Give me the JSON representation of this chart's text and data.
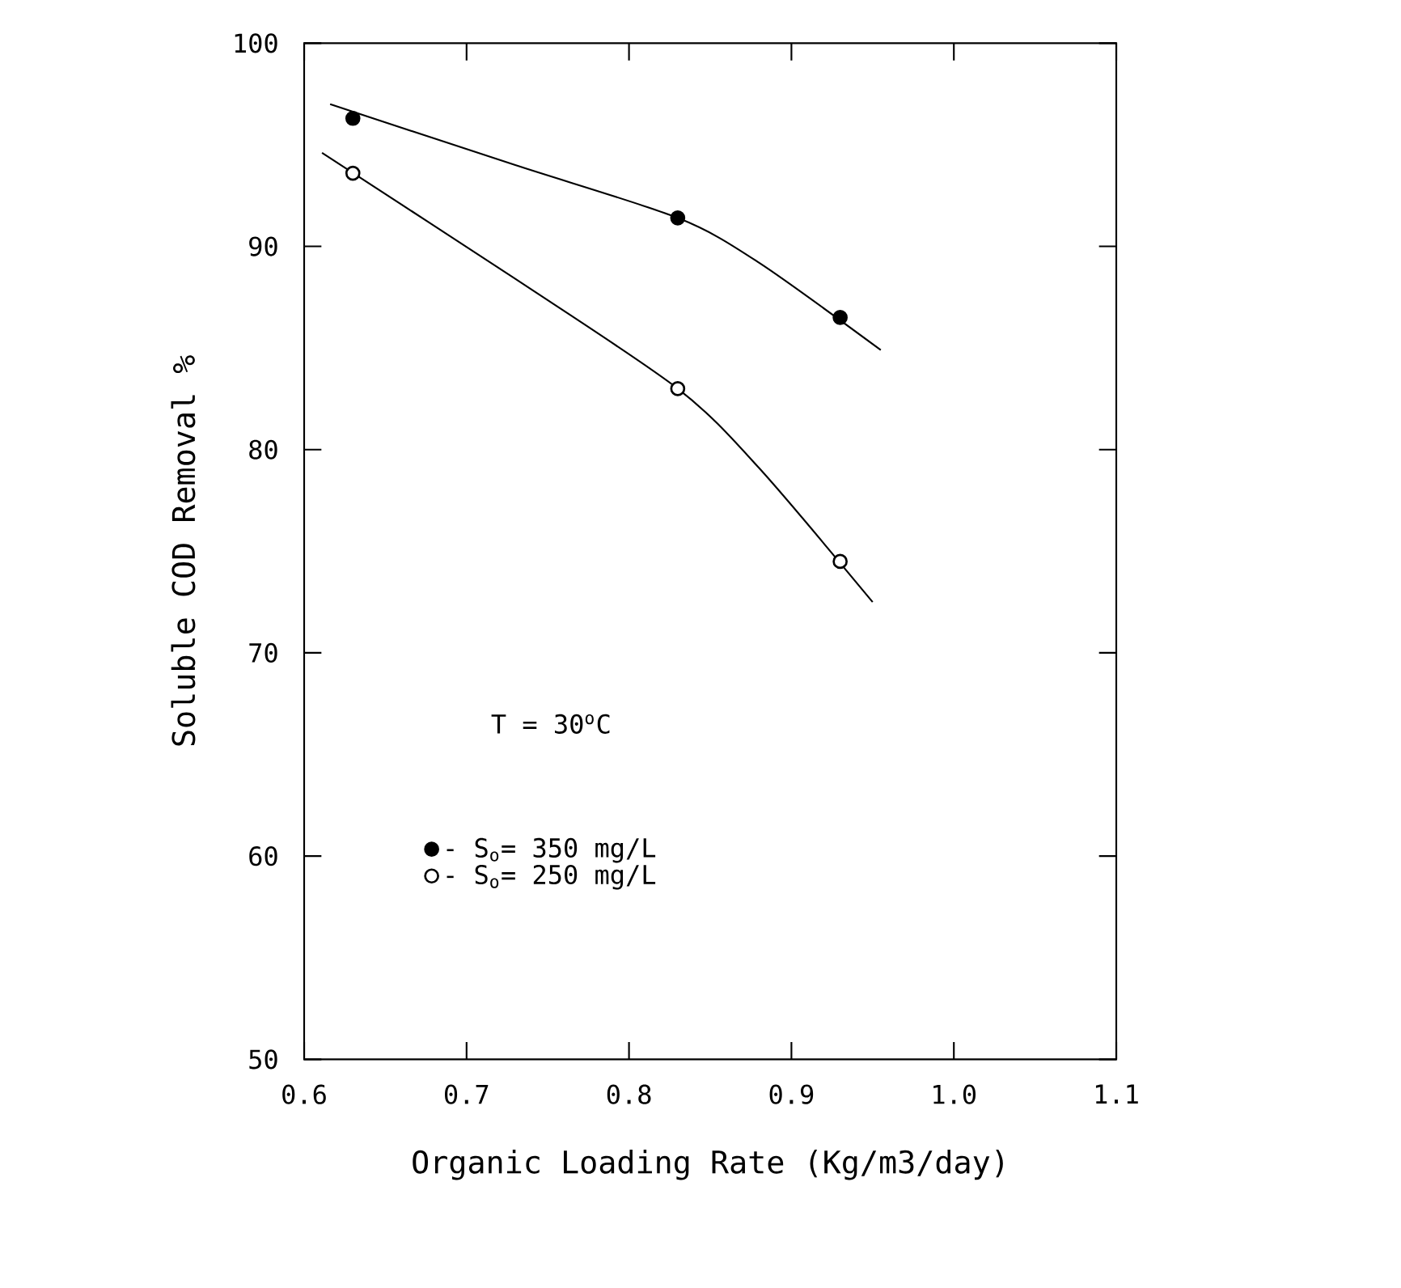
{
  "chart_data": {
    "type": "scatter",
    "xlabel": "Organic Loading Rate (Kg/m3/day)",
    "ylabel": "Soluble COD Removal %",
    "xlim": [
      0.6,
      1.1
    ],
    "ylim": [
      50,
      100
    ],
    "xticks": [
      0.6,
      0.7,
      0.8,
      0.9,
      {
        "value": 1.0,
        "label": "1.0"
      },
      1.1
    ],
    "yticks": [
      50,
      60,
      70,
      80,
      90,
      100
    ],
    "grid": false,
    "legend": "bottom left",
    "annotations": [
      "T = 30$^{o}$C"
    ],
    "series": [
      {
        "type": "line",
        "color": "#000000",
        "marker": "none",
        "x": [
          0.616,
          0.73,
          0.83,
          0.88,
          0.955
        ],
        "values": [
          97.0,
          94.0,
          91.4,
          89.2,
          84.9
        ]
      },
      {
        "type": "line",
        "color": "#000000",
        "marker": "none",
        "x": [
          0.611,
          0.73,
          0.83,
          0.88,
          0.95
        ],
        "values": [
          94.6,
          88.4,
          83.0,
          79.1,
          72.5
        ]
      },
      {
        "name": "- S$_{o}$= 350 mg/L",
        "color": "#000000",
        "marker": "circle",
        "x": [
          0.63,
          0.83,
          0.93
        ],
        "values": [
          96.3,
          91.4,
          86.5
        ]
      },
      {
        "name": "- S$_{o}$= 250 mg/L",
        "color": "#ffffff",
        "marker": "circle",
        "x": [
          0.63,
          0.83,
          0.93
        ],
        "values": [
          93.6,
          83.0,
          74.5
        ]
      }
    ]
  }
}
